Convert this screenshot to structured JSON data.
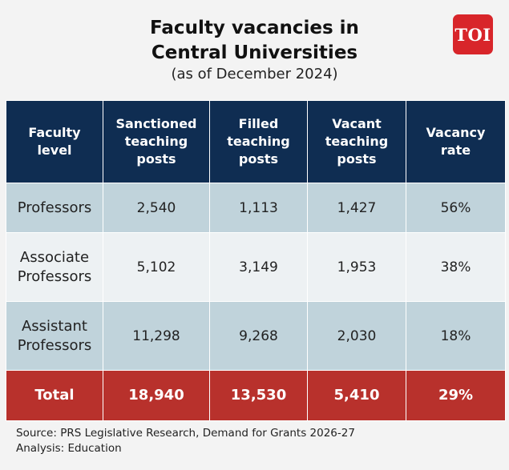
{
  "header": {
    "title_line1": "Faculty vacancies in",
    "title_line2": "Central Universities",
    "subtitle": "(as of December 2024)",
    "logo_text": "TOI"
  },
  "colors": {
    "header_bg": "#0f2d52",
    "row_tint": "#c0d3db",
    "row_light": "#edf1f3",
    "total_bg": "#b8312c",
    "logo_bg": "#d8252a"
  },
  "chart_data": {
    "type": "table",
    "columns": [
      {
        "line1": "Faculty",
        "line2": "level"
      },
      {
        "line1": "Sanctioned",
        "line2": "teaching",
        "line3": "posts"
      },
      {
        "line1": "Filled",
        "line2": "teaching",
        "line3": "posts"
      },
      {
        "line1": "Vacant",
        "line2": "teaching",
        "line3": "posts"
      },
      {
        "line1": "Vacancy",
        "line2": "rate"
      }
    ],
    "rows": [
      {
        "level": [
          "Professors"
        ],
        "sanctioned": "2,540",
        "filled": "1,113",
        "vacant": "1,427",
        "rate": "56%"
      },
      {
        "level": [
          "Associate",
          "Professors"
        ],
        "sanctioned": "5,102",
        "filled": "3,149",
        "vacant": "1,953",
        "rate": "38%"
      },
      {
        "level": [
          "Assistant",
          "Professors"
        ],
        "sanctioned": "11,298",
        "filled": "9,268",
        "vacant": "2,030",
        "rate": "18%"
      }
    ],
    "total": {
      "label": "Total",
      "sanctioned": "18,940",
      "filled": "13,530",
      "vacant": "5,410",
      "rate": "29%"
    }
  },
  "footer": {
    "source": "Source: PRS Legislative Research, Demand for Grants 2026-27",
    "analysis": "Analysis: Education"
  }
}
